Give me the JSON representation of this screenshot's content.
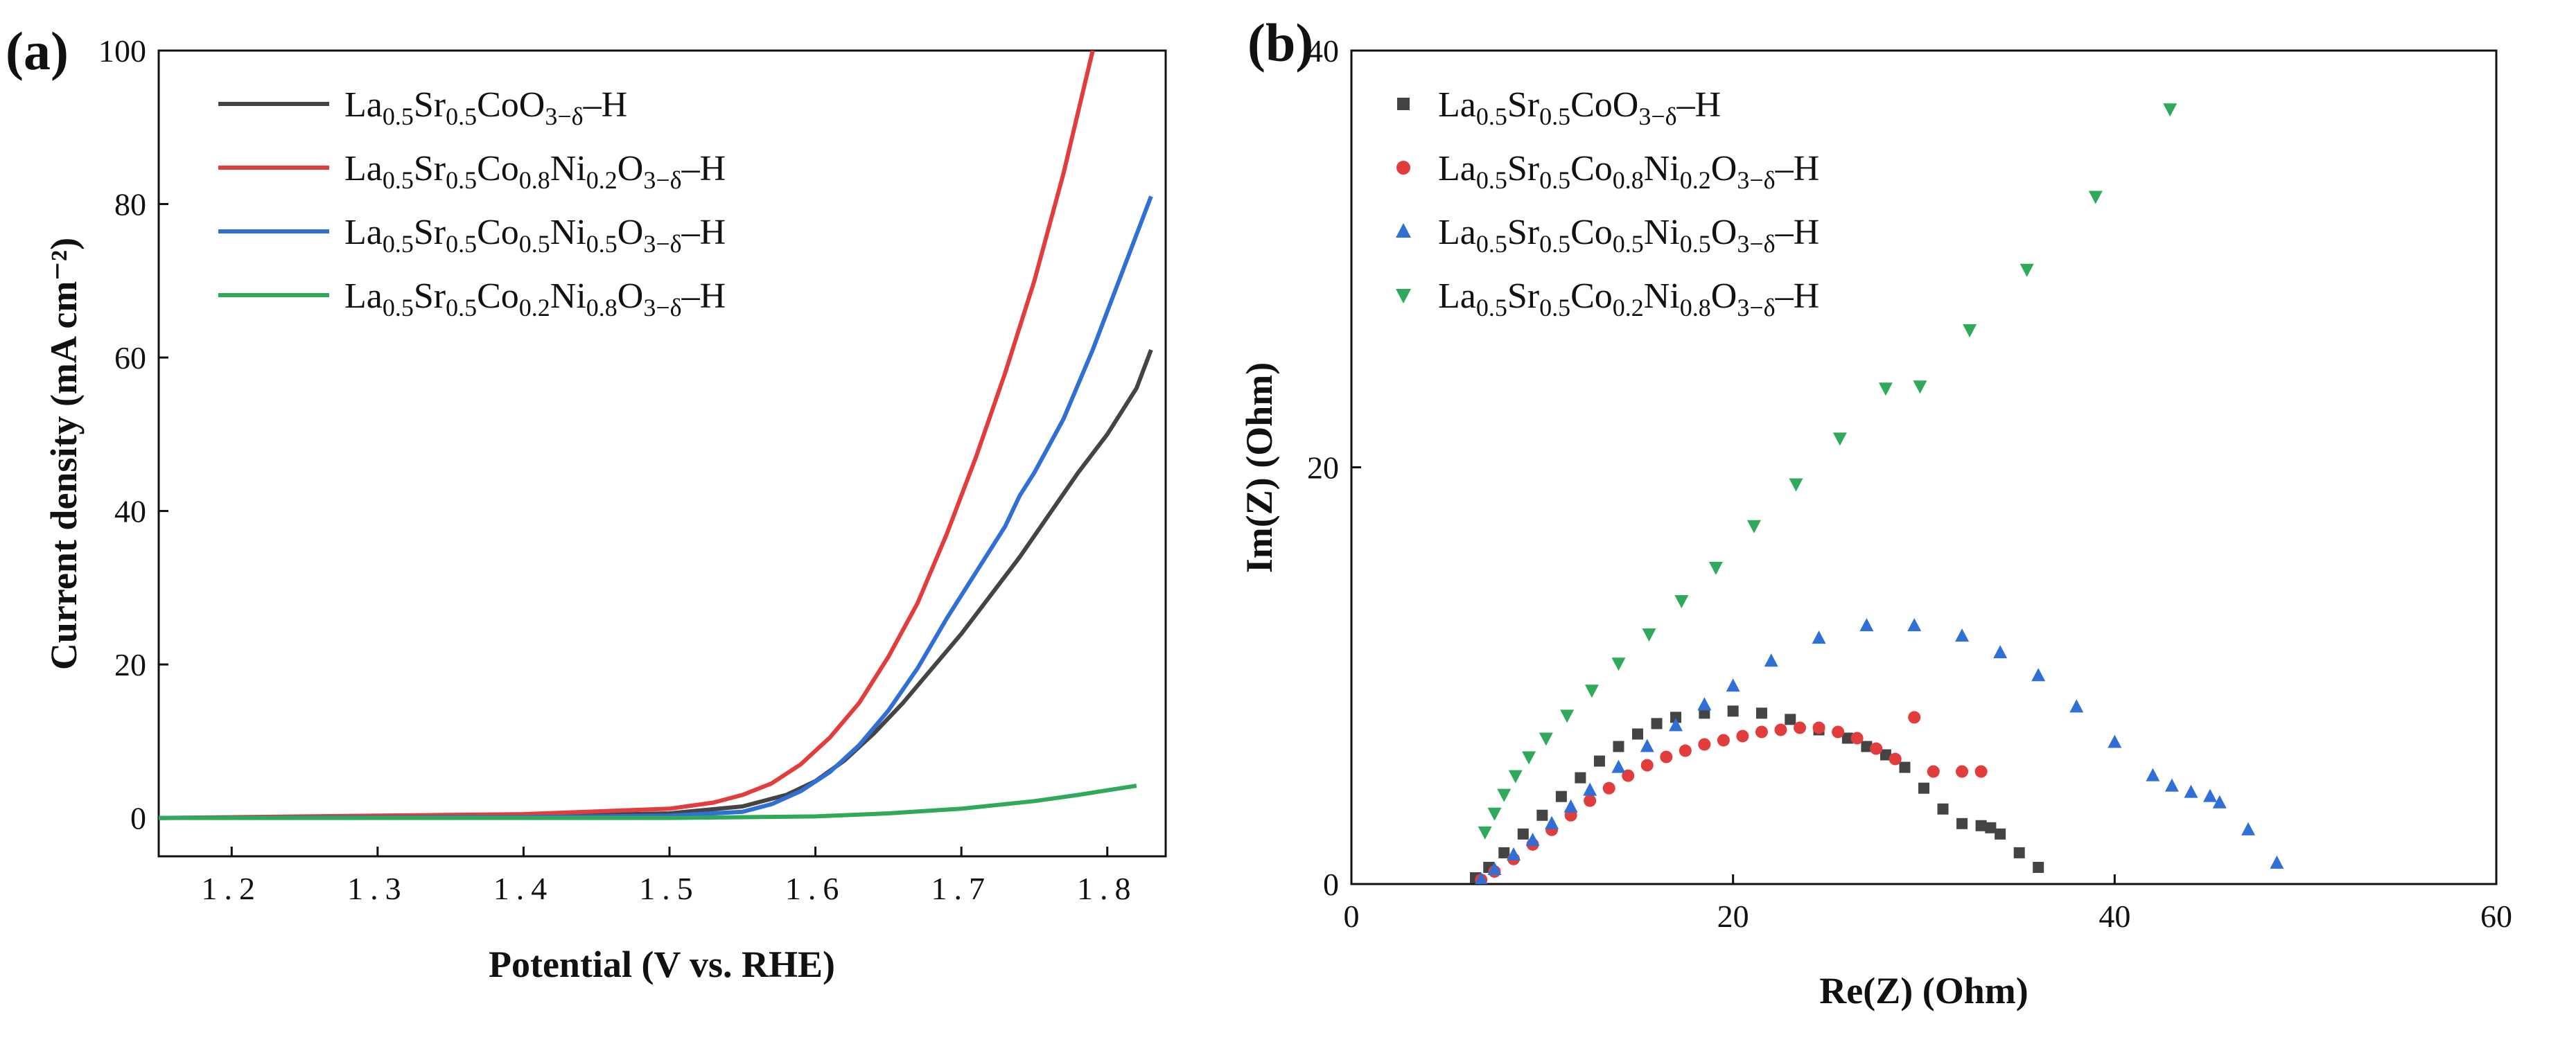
{
  "chart_data": [
    {
      "panel": "(a)",
      "type": "line",
      "title": "",
      "xlabel": "Potential (V vs. RHE)",
      "ylabel": "Current density (mA cm⁻²)",
      "xlim": [
        1.15,
        1.84
      ],
      "ylim": [
        -5,
        100
      ],
      "xticks": [
        1.2,
        1.3,
        1.4,
        1.5,
        1.6,
        1.7,
        1.8
      ],
      "xtick_labels": [
        "1.2",
        "1.3",
        "1.4",
        "1.5",
        "1.6",
        "1.7",
        "1.8"
      ],
      "yticks": [
        0,
        20,
        40,
        60,
        80,
        100
      ],
      "ytick_labels": [
        "0",
        "20",
        "40",
        "60",
        "80",
        "100"
      ],
      "legend_position": "top-left",
      "series": [
        {
          "name": "La0.5Sr0.5CoO3−δ–H",
          "legend_parts": [
            [
              "La",
              ""
            ],
            [
              "0.5",
              "sub"
            ],
            [
              "Sr",
              ""
            ],
            [
              "0.5",
              "sub"
            ],
            [
              "CoO",
              ""
            ],
            [
              "3−δ",
              "sub"
            ],
            [
              "–H",
              ""
            ]
          ],
          "color": "#444444",
          "x": [
            1.15,
            1.4,
            1.5,
            1.55,
            1.58,
            1.6,
            1.62,
            1.64,
            1.66,
            1.68,
            1.7,
            1.72,
            1.74,
            1.76,
            1.78,
            1.8,
            1.82,
            1.83
          ],
          "y": [
            0,
            0.2,
            0.6,
            1.5,
            3.0,
            4.8,
            7.5,
            11,
            15,
            19.5,
            24,
            29,
            34,
            39.5,
            45,
            50,
            56,
            61
          ]
        },
        {
          "name": "La0.5Sr0.5Co0.8Ni0.2O3−δ–H",
          "legend_parts": [
            [
              "La",
              ""
            ],
            [
              "0.5",
              "sub"
            ],
            [
              "Sr",
              ""
            ],
            [
              "0.5",
              "sub"
            ],
            [
              "Co",
              ""
            ],
            [
              "0.8",
              "sub"
            ],
            [
              "Ni",
              ""
            ],
            [
              "0.2",
              "sub"
            ],
            [
              "O",
              ""
            ],
            [
              "3−δ",
              "sub"
            ],
            [
              "–H",
              ""
            ]
          ],
          "color": "#e23c3c",
          "x": [
            1.15,
            1.4,
            1.5,
            1.53,
            1.55,
            1.57,
            1.59,
            1.61,
            1.63,
            1.65,
            1.67,
            1.69,
            1.71,
            1.73,
            1.75,
            1.77,
            1.79
          ],
          "y": [
            0,
            0.5,
            1.2,
            2.0,
            3.0,
            4.5,
            7.0,
            10.5,
            15,
            21,
            28,
            37,
            47,
            58,
            70,
            84,
            100
          ]
        },
        {
          "name": "La0.5Sr0.5Co0.5Ni0.5O3−δ–H",
          "legend_parts": [
            [
              "La",
              ""
            ],
            [
              "0.5",
              "sub"
            ],
            [
              "Sr",
              ""
            ],
            [
              "0.5",
              "sub"
            ],
            [
              "Co",
              ""
            ],
            [
              "0.5",
              "sub"
            ],
            [
              "Ni",
              ""
            ],
            [
              "0.5",
              "sub"
            ],
            [
              "O",
              ""
            ],
            [
              "3−δ",
              "sub"
            ],
            [
              "–H",
              ""
            ]
          ],
          "color": "#2f6fd6",
          "x": [
            1.15,
            1.4,
            1.5,
            1.55,
            1.57,
            1.59,
            1.61,
            1.63,
            1.65,
            1.67,
            1.69,
            1.71,
            1.73,
            1.74,
            1.75,
            1.77,
            1.79,
            1.81,
            1.83
          ],
          "y": [
            0,
            0.1,
            0.3,
            0.8,
            1.8,
            3.5,
            6.0,
            9.5,
            14,
            19.5,
            26,
            32,
            38,
            42,
            45,
            52,
            61,
            71,
            81
          ]
        },
        {
          "name": "La0.5Sr0.5Co0.2Ni0.8O3−δ–H",
          "legend_parts": [
            [
              "La",
              ""
            ],
            [
              "0.5",
              "sub"
            ],
            [
              "Sr",
              ""
            ],
            [
              "0.5",
              "sub"
            ],
            [
              "Co",
              ""
            ],
            [
              "0.2",
              "sub"
            ],
            [
              "Ni",
              ""
            ],
            [
              "0.8",
              "sub"
            ],
            [
              "O",
              ""
            ],
            [
              "3−δ",
              "sub"
            ],
            [
              "–H",
              ""
            ]
          ],
          "color": "#2eaa5a",
          "x": [
            1.15,
            1.5,
            1.6,
            1.65,
            1.7,
            1.75,
            1.78,
            1.8,
            1.82
          ],
          "y": [
            0,
            0,
            0.2,
            0.6,
            1.2,
            2.2,
            3.0,
            3.6,
            4.2
          ]
        }
      ]
    },
    {
      "panel": "(b)",
      "type": "scatter",
      "title": "",
      "xlabel": "Re(Z) (Ohm)",
      "ylabel": "Im(Z) (Ohm)",
      "xlim": [
        0,
        60
      ],
      "ylim": [
        0,
        40
      ],
      "xticks": [
        0,
        20,
        40,
        60
      ],
      "xtick_labels": [
        "0",
        "20",
        "40",
        "60"
      ],
      "yticks": [
        0,
        20,
        40
      ],
      "ytick_labels": [
        "0",
        "20",
        "40"
      ],
      "legend_position": "top-left",
      "series": [
        {
          "name": "La0.5Sr0.5CoO3−δ–H",
          "legend_parts": [
            [
              "La",
              ""
            ],
            [
              "0.5",
              "sub"
            ],
            [
              "Sr",
              ""
            ],
            [
              "0.5",
              "sub"
            ],
            [
              "CoO",
              ""
            ],
            [
              "3−δ",
              "sub"
            ],
            [
              "–H",
              ""
            ]
          ],
          "color": "#444444",
          "marker": "square",
          "x": [
            6.5,
            7.2,
            8.0,
            9.0,
            10.0,
            11.0,
            12.0,
            13.0,
            14.0,
            15.0,
            16.0,
            17.0,
            18.5,
            20.0,
            21.5,
            23.0,
            24.5,
            26.0,
            27.0,
            28.0,
            29.0,
            30.0,
            31.0,
            32.0,
            33.0,
            33.5,
            34.0,
            35.0,
            36.0
          ],
          "y": [
            0.3,
            0.8,
            1.5,
            2.4,
            3.3,
            4.2,
            5.1,
            5.9,
            6.6,
            7.2,
            7.7,
            8.0,
            8.2,
            8.3,
            8.2,
            7.9,
            7.4,
            7.0,
            6.6,
            6.2,
            5.6,
            4.6,
            3.6,
            2.9,
            2.8,
            2.7,
            2.4,
            1.5,
            0.8
          ]
        },
        {
          "name": "La0.5Sr0.5Co0.8Ni0.2O3−δ–H",
          "legend_parts": [
            [
              "La",
              ""
            ],
            [
              "0.5",
              "sub"
            ],
            [
              "Sr",
              ""
            ],
            [
              "0.5",
              "sub"
            ],
            [
              "Co",
              ""
            ],
            [
              "0.8",
              "sub"
            ],
            [
              "Ni",
              ""
            ],
            [
              "0.2",
              "sub"
            ],
            [
              "O",
              ""
            ],
            [
              "3−δ",
              "sub"
            ],
            [
              "–H",
              ""
            ]
          ],
          "color": "#e23c3c",
          "marker": "circle",
          "x": [
            6.8,
            7.5,
            8.5,
            9.5,
            10.5,
            11.5,
            12.5,
            13.5,
            14.5,
            15.5,
            16.5,
            17.5,
            18.5,
            19.5,
            20.5,
            21.5,
            22.5,
            23.5,
            24.5,
            25.5,
            26.5,
            27.5,
            28.5,
            29.5,
            30.5,
            32.0,
            33.0
          ],
          "y": [
            0.2,
            0.6,
            1.2,
            1.9,
            2.6,
            3.3,
            4.0,
            4.6,
            5.2,
            5.7,
            6.1,
            6.4,
            6.7,
            6.9,
            7.1,
            7.3,
            7.4,
            7.5,
            7.5,
            7.3,
            7.0,
            6.5,
            6.0,
            8.0,
            5.4,
            5.4,
            5.4
          ]
        },
        {
          "name": "La0.5Sr0.5Co0.5Ni0.5O3−δ–H",
          "legend_parts": [
            [
              "La",
              ""
            ],
            [
              "0.5",
              "sub"
            ],
            [
              "Sr",
              ""
            ],
            [
              "0.5",
              "sub"
            ],
            [
              "Co",
              ""
            ],
            [
              "0.5",
              "sub"
            ],
            [
              "Ni",
              ""
            ],
            [
              "0.5",
              "sub"
            ],
            [
              "O",
              ""
            ],
            [
              "3−δ",
              "sub"
            ],
            [
              "–H",
              ""
            ]
          ],
          "color": "#2f6fd6",
          "marker": "triangle-up",
          "x": [
            6.8,
            7.5,
            8.5,
            9.5,
            10.5,
            11.5,
            12.5,
            14.0,
            15.5,
            17.0,
            18.5,
            20.0,
            22.0,
            24.5,
            27.0,
            29.5,
            32.0,
            34.0,
            36.0,
            38.0,
            40.0,
            42.0,
            43.0,
            44.0,
            45.0,
            45.5,
            47.0,
            48.5
          ],
          "y": [
            0.2,
            0.7,
            1.4,
            2.1,
            2.9,
            3.7,
            4.5,
            5.6,
            6.6,
            7.6,
            8.6,
            9.5,
            10.7,
            11.8,
            12.4,
            12.4,
            11.9,
            11.1,
            10.0,
            8.5,
            6.8,
            5.2,
            4.7,
            4.4,
            4.2,
            3.9,
            2.6,
            1.0
          ]
        },
        {
          "name": "La0.5Sr0.5Co0.2Ni0.8O3−δ–H",
          "legend_parts": [
            [
              "La",
              ""
            ],
            [
              "0.5",
              "sub"
            ],
            [
              "Sr",
              ""
            ],
            [
              "0.5",
              "sub"
            ],
            [
              "Co",
              ""
            ],
            [
              "0.2",
              "sub"
            ],
            [
              "Ni",
              ""
            ],
            [
              "0.8",
              "sub"
            ],
            [
              "O",
              ""
            ],
            [
              "3−δ",
              "sub"
            ],
            [
              "–H",
              ""
            ]
          ],
          "color": "#2eaa5a",
          "marker": "triangle-down",
          "x": [
            7.0,
            7.5,
            8.0,
            8.6,
            9.3,
            10.2,
            11.3,
            12.6,
            14.0,
            15.6,
            17.3,
            19.1,
            21.1,
            23.3,
            25.6,
            28.0,
            29.8,
            32.4,
            35.4,
            39.0,
            42.9
          ],
          "y": [
            2.5,
            3.4,
            4.3,
            5.2,
            6.1,
            7.0,
            8.1,
            9.3,
            10.6,
            12.0,
            13.6,
            15.2,
            17.2,
            19.2,
            21.4,
            23.8,
            23.9,
            26.6,
            29.5,
            33.0,
            37.2
          ]
        }
      ]
    }
  ]
}
